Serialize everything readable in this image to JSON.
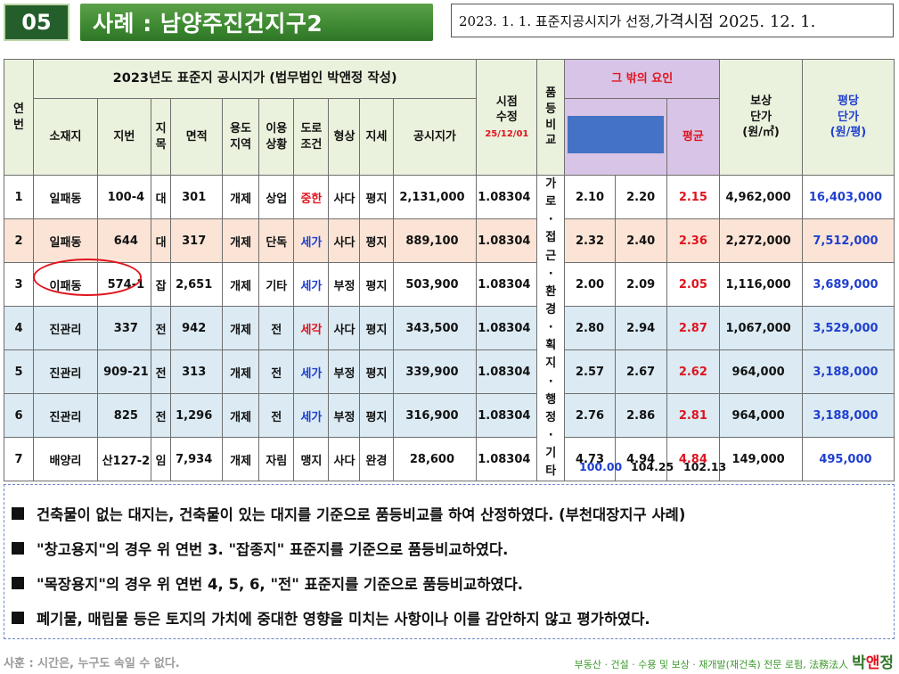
{
  "header": {
    "number": "05",
    "title": "사례 : 남양주진건지구2",
    "subtitle_prefix": "2023. 1. 1. 표준지공시지가 선정, ",
    "subtitle_emph": "가격시점 2025. 12. 1."
  },
  "table": {
    "col_no": "연\n번",
    "group_title": "2023년도 표준지 공시지가 (법무법인 박앤정 작성)",
    "cols": {
      "location": "소재지",
      "lot": "지번",
      "jimok": "지\n목",
      "area": "면적",
      "zone": "용도\n지역",
      "use": "이용\n상황",
      "road": "도로\n조건",
      "shape": "형상",
      "terrain": "지세",
      "price": "공시지가"
    },
    "time_adj": "시점\n수정",
    "time_date": "25/12/01",
    "grade": "품\n등\n비\n교",
    "other_factors": "그 밖의 요인",
    "avg": "평균",
    "comp_unit_price": "보상\n단가\n(원/㎡)",
    "pyeong_price": "평당\n단가\n(원/평)",
    "factor_text": [
      "가",
      "로",
      "·",
      "접",
      "근",
      "·",
      "환",
      "경",
      "·",
      "획",
      "지",
      "·",
      "행",
      "정",
      "·",
      "기",
      "타"
    ],
    "rows": [
      {
        "no": "1",
        "location": "일패동",
        "lot": "100-4",
        "jimok": "대",
        "area": "301",
        "zone": "개제",
        "use": "상업",
        "road": "중한",
        "shape": "사다",
        "terrain": "평지",
        "price": "2,131,000",
        "time": "1.08304",
        "f1": "2.10",
        "f2": "2.20",
        "avg": "2.15",
        "comp": "4,962,000",
        "pyeong": "16,403,000"
      },
      {
        "no": "2",
        "location": "일패동",
        "lot": "644",
        "jimok": "대",
        "area": "317",
        "zone": "개제",
        "use": "단독",
        "road": "세가",
        "shape": "사다",
        "terrain": "평지",
        "price": "889,100",
        "time": "1.08304",
        "f1": "2.32",
        "f2": "2.40",
        "avg": "2.36",
        "comp": "2,272,000",
        "pyeong": "7,512,000"
      },
      {
        "no": "3",
        "location": "이패동",
        "lot": "574-1",
        "jimok": "잡",
        "area": "2,651",
        "zone": "개제",
        "use": "기타",
        "road": "세가",
        "shape": "부정",
        "terrain": "평지",
        "price": "503,900",
        "time": "1.08304",
        "f1": "2.00",
        "f2": "2.09",
        "avg": "2.05",
        "comp": "1,116,000",
        "pyeong": "3,689,000"
      },
      {
        "no": "4",
        "location": "진관리",
        "lot": "337",
        "jimok": "전",
        "area": "942",
        "zone": "개제",
        "use": "전",
        "road": "세각",
        "shape": "사다",
        "terrain": "평지",
        "price": "343,500",
        "time": "1.08304",
        "f1": "2.80",
        "f2": "2.94",
        "avg": "2.87",
        "comp": "1,067,000",
        "pyeong": "3,529,000"
      },
      {
        "no": "5",
        "location": "진관리",
        "lot": "909-21",
        "jimok": "전",
        "area": "313",
        "zone": "개제",
        "use": "전",
        "road": "세가",
        "shape": "부정",
        "terrain": "평지",
        "price": "339,900",
        "time": "1.08304",
        "f1": "2.57",
        "f2": "2.67",
        "avg": "2.62",
        "comp": "964,000",
        "pyeong": "3,188,000"
      },
      {
        "no": "6",
        "location": "진관리",
        "lot": "825",
        "jimok": "전",
        "area": "1,296",
        "zone": "개제",
        "use": "전",
        "road": "세가",
        "shape": "부정",
        "terrain": "평지",
        "price": "316,900",
        "time": "1.08304",
        "f1": "2.76",
        "f2": "2.86",
        "avg": "2.81",
        "comp": "964,000",
        "pyeong": "3,188,000"
      },
      {
        "no": "7",
        "location": "배양리",
        "lot": "산127-2",
        "jimok": "임",
        "area": "7,934",
        "zone": "개제",
        "use": "자림",
        "road": "맹지",
        "shape": "사다",
        "terrain": "완경",
        "price": "28,600",
        "time": "1.08304",
        "f1": "4.73",
        "f2": "4.94",
        "avg": "4.84",
        "comp": "149,000",
        "pyeong": "495,000"
      }
    ],
    "sums": {
      "s1": "100.00",
      "s2": "104.25",
      "s3": "102.13"
    }
  },
  "notes": [
    "건축물이 없는 대지는, 건축물이 있는 대지를 기준으로 품등비교를 하여 산정하였다. (부천대장지구 사례)",
    "\"창고용지\"의 경우 위 연번 3. \"잡종지\" 표준지를 기준으로 품등비교하였다.",
    "\"목장용지\"의 경우 위 연번 4, 5, 6, \"전\" 표준지를 기준으로 품등비교하였다.",
    "폐기물, 매립물 등은 토지의 가치에 중대한 영향을 미치는 사항이나 이를 감안하지 않고 평가하였다."
  ],
  "footer": {
    "left": "사훈 : 시간은, 누구도 속일 수 없다.",
    "right": "부동산 · 건설 · 수용 및 보상 · 재개발(재건축) 전문 로펌, 法務法人",
    "brand1": "박",
    "brand2": "앤",
    "brand3": "정"
  },
  "colors": {
    "green": "#3f8b33",
    "red": "#e0141f",
    "blue": "#1f3fd0",
    "purple": "#d8c4e6",
    "blue_box": "#4472c4"
  }
}
